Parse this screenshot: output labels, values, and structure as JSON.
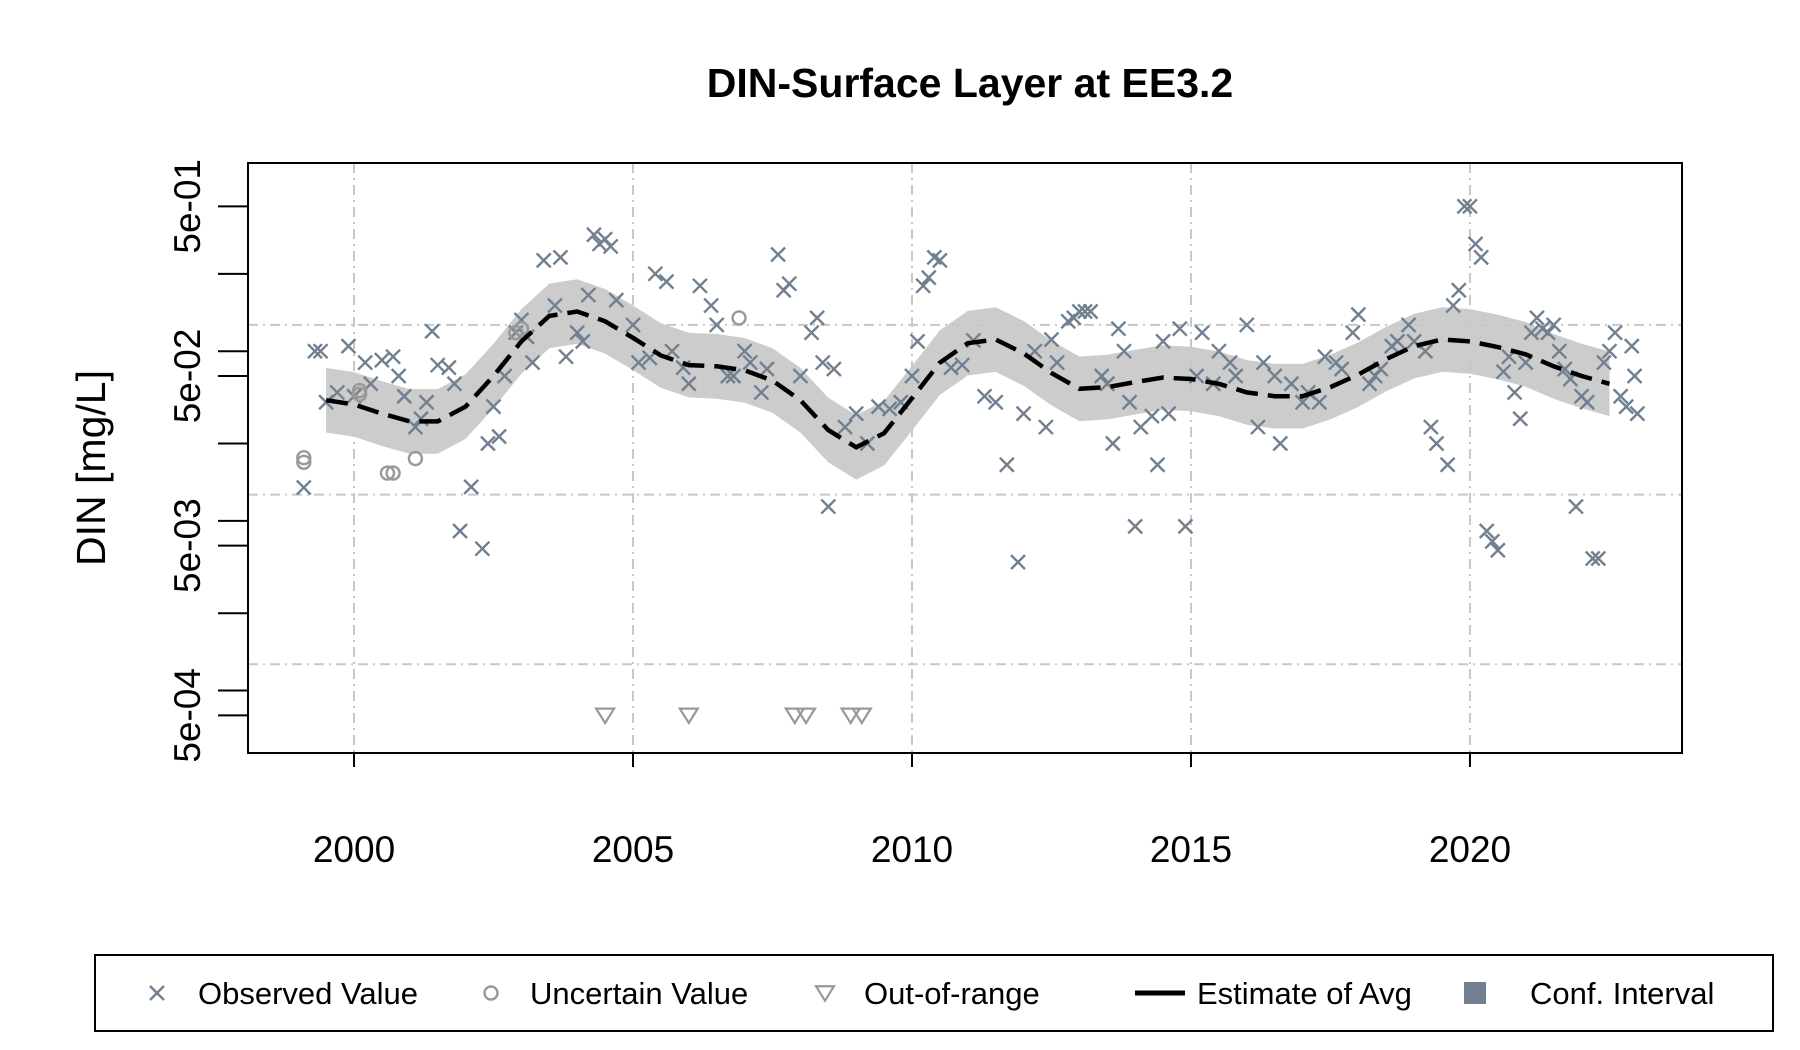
{
  "chart_data": {
    "type": "scatter",
    "title": "DIN-Surface Layer at EE3.2",
    "xlabel": "",
    "ylabel": "DIN [mg/L]",
    "x_scale": "linear",
    "y_scale": "log",
    "xlim": [
      1998.1,
      2023.8
    ],
    "ylim": [
      0.0003,
      0.9
    ],
    "grid": true,
    "x_ticks": [
      {
        "value": 2000,
        "label": "2000"
      },
      {
        "value": 2005,
        "label": "2005"
      },
      {
        "value": 2010,
        "label": "2010"
      },
      {
        "value": 2015,
        "label": "2015"
      },
      {
        "value": 2020,
        "label": "2020"
      }
    ],
    "y_ticks": [
      {
        "value": 0.0005,
        "label": "5e-04"
      },
      {
        "value": 0.005,
        "label": "5e-03"
      },
      {
        "value": 0.05,
        "label": "5e-02"
      },
      {
        "value": 0.5,
        "label": "5e-01"
      }
    ],
    "y_minor_ticks": [
      0.0007,
      0.002,
      0.007,
      0.02,
      0.07,
      0.2
    ],
    "y_grid": [
      0.001,
      0.01,
      0.1
    ],
    "x_grid": [
      2000,
      2005,
      2010,
      2015,
      2020
    ],
    "colors": {
      "observed": "#708090",
      "uncertain": "#999999",
      "out_of_range": "#999999",
      "estimate": "#000000",
      "conf_band": "#cccccc",
      "conf_legend": "#708090",
      "grid": "#c8c8c8"
    },
    "series": [
      {
        "name": "Observed Value",
        "marker": "x",
        "points": [
          [
            1999.1,
            0.011
          ],
          [
            1999.3,
            0.07
          ],
          [
            1999.4,
            0.07
          ],
          [
            1999.5,
            0.035
          ],
          [
            1999.7,
            0.04
          ],
          [
            1999.9,
            0.075
          ],
          [
            2000.0,
            0.038
          ],
          [
            2000.2,
            0.06
          ],
          [
            2000.3,
            0.045
          ],
          [
            2000.5,
            0.062
          ],
          [
            2000.7,
            0.065
          ],
          [
            2000.8,
            0.05
          ],
          [
            2000.9,
            0.038
          ],
          [
            2001.1,
            0.025
          ],
          [
            2001.2,
            0.028
          ],
          [
            2001.3,
            0.035
          ],
          [
            2001.4,
            0.0918
          ],
          [
            2001.5,
            0.058
          ],
          [
            2001.7,
            0.056
          ],
          [
            2001.8,
            0.045
          ],
          [
            2001.9,
            0.0061
          ],
          [
            2002.1,
            0.0111
          ],
          [
            2002.3,
            0.0048
          ],
          [
            2002.4,
            0.02
          ],
          [
            2002.5,
            0.033
          ],
          [
            2002.6,
            0.022
          ],
          [
            2002.7,
            0.05
          ],
          [
            2002.9,
            0.09
          ],
          [
            2003.0,
            0.107
          ],
          [
            2003.1,
            0.085
          ],
          [
            2003.2,
            0.06
          ],
          [
            2003.4,
            0.24
          ],
          [
            2003.6,
            0.13
          ],
          [
            2003.7,
            0.25
          ],
          [
            2003.8,
            0.065
          ],
          [
            2004.0,
            0.09
          ],
          [
            2004.1,
            0.08
          ],
          [
            2004.2,
            0.15
          ],
          [
            2004.3,
            0.34
          ],
          [
            2004.4,
            0.3
          ],
          [
            2004.5,
            0.32
          ],
          [
            2004.6,
            0.29
          ],
          [
            2004.7,
            0.14
          ],
          [
            2005.0,
            0.1
          ],
          [
            2005.1,
            0.06
          ],
          [
            2005.3,
            0.064
          ],
          [
            2005.4,
            0.2
          ],
          [
            2005.6,
            0.18
          ],
          [
            2005.7,
            0.07
          ],
          [
            2005.9,
            0.056
          ],
          [
            2006.0,
            0.045
          ],
          [
            2006.2,
            0.17
          ],
          [
            2006.4,
            0.13
          ],
          [
            2006.5,
            0.1
          ],
          [
            2006.7,
            0.05
          ],
          [
            2006.8,
            0.05
          ],
          [
            2007.0,
            0.07
          ],
          [
            2007.1,
            0.06
          ],
          [
            2007.3,
            0.04
          ],
          [
            2007.4,
            0.055
          ],
          [
            2007.6,
            0.26
          ],
          [
            2007.7,
            0.16
          ],
          [
            2007.8,
            0.175
          ],
          [
            2008.0,
            0.05
          ],
          [
            2008.2,
            0.09
          ],
          [
            2008.3,
            0.11
          ],
          [
            2008.4,
            0.06
          ],
          [
            2008.5,
            0.0085
          ],
          [
            2008.6,
            0.055
          ],
          [
            2008.8,
            0.025
          ],
          [
            2009.0,
            0.03
          ],
          [
            2009.2,
            0.02
          ],
          [
            2009.4,
            0.033
          ],
          [
            2009.6,
            0.032
          ],
          [
            2009.8,
            0.035
          ],
          [
            2010.0,
            0.05
          ],
          [
            2010.1,
            0.08
          ],
          [
            2010.2,
            0.17
          ],
          [
            2010.3,
            0.19
          ],
          [
            2010.4,
            0.25
          ],
          [
            2010.5,
            0.24
          ],
          [
            2010.7,
            0.056
          ],
          [
            2010.9,
            0.058
          ],
          [
            2011.1,
            0.081
          ],
          [
            2011.3,
            0.038
          ],
          [
            2011.5,
            0.035
          ],
          [
            2011.7,
            0.015
          ],
          [
            2011.9,
            0.004
          ],
          [
            2012.0,
            0.03
          ],
          [
            2012.2,
            0.07
          ],
          [
            2012.4,
            0.025
          ],
          [
            2012.5,
            0.082
          ],
          [
            2012.6,
            0.06
          ],
          [
            2012.8,
            0.105
          ],
          [
            2012.9,
            0.11
          ],
          [
            2013.0,
            0.12
          ],
          [
            2013.1,
            0.12
          ],
          [
            2013.2,
            0.12
          ],
          [
            2013.4,
            0.05
          ],
          [
            2013.5,
            0.045
          ],
          [
            2013.6,
            0.02
          ],
          [
            2013.7,
            0.095
          ],
          [
            2013.8,
            0.07
          ],
          [
            2013.9,
            0.035
          ],
          [
            2014.0,
            0.0065
          ],
          [
            2014.1,
            0.025
          ],
          [
            2014.3,
            0.029
          ],
          [
            2014.4,
            0.015
          ],
          [
            2014.5,
            0.08
          ],
          [
            2014.6,
            0.03
          ],
          [
            2014.8,
            0.095
          ],
          [
            2014.9,
            0.0065
          ],
          [
            2015.1,
            0.05
          ],
          [
            2015.2,
            0.09
          ],
          [
            2015.4,
            0.045
          ],
          [
            2015.5,
            0.07
          ],
          [
            2015.7,
            0.06
          ],
          [
            2015.8,
            0.05
          ],
          [
            2016.0,
            0.1
          ],
          [
            2016.2,
            0.025
          ],
          [
            2016.3,
            0.06
          ],
          [
            2016.5,
            0.05
          ],
          [
            2016.6,
            0.02
          ],
          [
            2016.8,
            0.045
          ],
          [
            2017.0,
            0.035
          ],
          [
            2017.1,
            0.04
          ],
          [
            2017.3,
            0.035
          ],
          [
            2017.4,
            0.065
          ],
          [
            2017.6,
            0.06
          ],
          [
            2017.7,
            0.055
          ],
          [
            2017.9,
            0.09
          ],
          [
            2018.0,
            0.115
          ],
          [
            2018.2,
            0.045
          ],
          [
            2018.3,
            0.05
          ],
          [
            2018.4,
            0.055
          ],
          [
            2018.6,
            0.075
          ],
          [
            2018.7,
            0.08
          ],
          [
            2018.9,
            0.1
          ],
          [
            2019.0,
            0.08
          ],
          [
            2019.2,
            0.07
          ],
          [
            2019.3,
            0.025
          ],
          [
            2019.4,
            0.02
          ],
          [
            2019.6,
            0.015
          ],
          [
            2019.7,
            0.13
          ],
          [
            2019.8,
            0.16
          ],
          [
            2019.9,
            0.5
          ],
          [
            2020.0,
            0.5
          ],
          [
            2020.1,
            0.3
          ],
          [
            2020.2,
            0.25
          ],
          [
            2020.3,
            0.0061
          ],
          [
            2020.4,
            0.0053
          ],
          [
            2020.5,
            0.0047
          ],
          [
            2020.6,
            0.053
          ],
          [
            2020.7,
            0.065
          ],
          [
            2020.8,
            0.04
          ],
          [
            2020.9,
            0.028
          ],
          [
            2021.0,
            0.06
          ],
          [
            2021.1,
            0.09
          ],
          [
            2021.2,
            0.11
          ],
          [
            2021.3,
            0.095
          ],
          [
            2021.4,
            0.09
          ],
          [
            2021.5,
            0.1
          ],
          [
            2021.6,
            0.07
          ],
          [
            2021.7,
            0.055
          ],
          [
            2021.8,
            0.048
          ],
          [
            2021.9,
            0.0085
          ],
          [
            2022.0,
            0.038
          ],
          [
            2022.1,
            0.035
          ],
          [
            2022.2,
            0.0042
          ],
          [
            2022.3,
            0.0042
          ],
          [
            2022.4,
            0.06
          ],
          [
            2022.5,
            0.07
          ],
          [
            2022.6,
            0.09
          ],
          [
            2022.7,
            0.038
          ],
          [
            2022.8,
            0.033
          ],
          [
            2022.9,
            0.075
          ],
          [
            2022.95,
            0.05
          ],
          [
            2023.0,
            0.03
          ]
        ]
      },
      {
        "name": "Uncertain Value",
        "marker": "circle",
        "points": [
          [
            1999.1,
            0.0155
          ],
          [
            1999.1,
            0.0165
          ],
          [
            2000.1,
            0.039
          ],
          [
            2000.1,
            0.041
          ],
          [
            2000.6,
            0.0134
          ],
          [
            2000.7,
            0.0134
          ],
          [
            2001.1,
            0.0163
          ],
          [
            2002.9,
            0.09
          ],
          [
            2003.0,
            0.095
          ],
          [
            2006.9,
            0.11
          ]
        ]
      },
      {
        "name": "Out-of-range",
        "marker": "triangle-down",
        "points": [
          [
            2004.5,
            0.0005
          ],
          [
            2006.0,
            0.0005
          ],
          [
            2007.9,
            0.0005
          ],
          [
            2008.1,
            0.0005
          ],
          [
            2008.9,
            0.0005
          ],
          [
            2009.1,
            0.0005
          ]
        ]
      },
      {
        "name": "Estimate of Avg",
        "marker": "dashed-line",
        "points": [
          [
            1999.5,
            0.036
          ],
          [
            2000.0,
            0.034
          ],
          [
            2000.5,
            0.03
          ],
          [
            2001.0,
            0.027
          ],
          [
            2001.5,
            0.027
          ],
          [
            2002.0,
            0.033
          ],
          [
            2002.5,
            0.05
          ],
          [
            2003.0,
            0.08
          ],
          [
            2003.5,
            0.113
          ],
          [
            2004.0,
            0.12
          ],
          [
            2004.5,
            0.105
          ],
          [
            2005.0,
            0.084
          ],
          [
            2005.5,
            0.066
          ],
          [
            2006.0,
            0.058
          ],
          [
            2006.5,
            0.057
          ],
          [
            2007.0,
            0.054
          ],
          [
            2007.5,
            0.047
          ],
          [
            2008.0,
            0.036
          ],
          [
            2008.5,
            0.024
          ],
          [
            2009.0,
            0.019
          ],
          [
            2009.5,
            0.023
          ],
          [
            2010.0,
            0.037
          ],
          [
            2010.5,
            0.06
          ],
          [
            2011.0,
            0.078
          ],
          [
            2011.5,
            0.082
          ],
          [
            2012.0,
            0.068
          ],
          [
            2012.5,
            0.052
          ],
          [
            2013.0,
            0.042
          ],
          [
            2013.5,
            0.043
          ],
          [
            2014.0,
            0.046
          ],
          [
            2014.5,
            0.049
          ],
          [
            2015.0,
            0.048
          ],
          [
            2015.5,
            0.045
          ],
          [
            2016.0,
            0.04
          ],
          [
            2016.5,
            0.038
          ],
          [
            2017.0,
            0.038
          ],
          [
            2017.5,
            0.043
          ],
          [
            2018.0,
            0.051
          ],
          [
            2018.5,
            0.063
          ],
          [
            2019.0,
            0.075
          ],
          [
            2019.5,
            0.082
          ],
          [
            2020.0,
            0.08
          ],
          [
            2020.5,
            0.074
          ],
          [
            2021.0,
            0.067
          ],
          [
            2021.5,
            0.057
          ],
          [
            2022.0,
            0.05
          ],
          [
            2022.5,
            0.045
          ]
        ]
      },
      {
        "name": "Conf. Interval",
        "marker": "band",
        "upper_factor": 1.55,
        "lower_factor": 0.645
      }
    ],
    "legend": {
      "placement": "bottom",
      "items": [
        {
          "symbol": "x",
          "label": "Observed Value"
        },
        {
          "symbol": "circle",
          "label": "Uncertain Value"
        },
        {
          "symbol": "triangle-down",
          "label": "Out-of-range"
        },
        {
          "symbol": "dashed-line",
          "label": "Estimate of Avg"
        },
        {
          "symbol": "square",
          "label": "Conf. Interval"
        }
      ]
    }
  }
}
